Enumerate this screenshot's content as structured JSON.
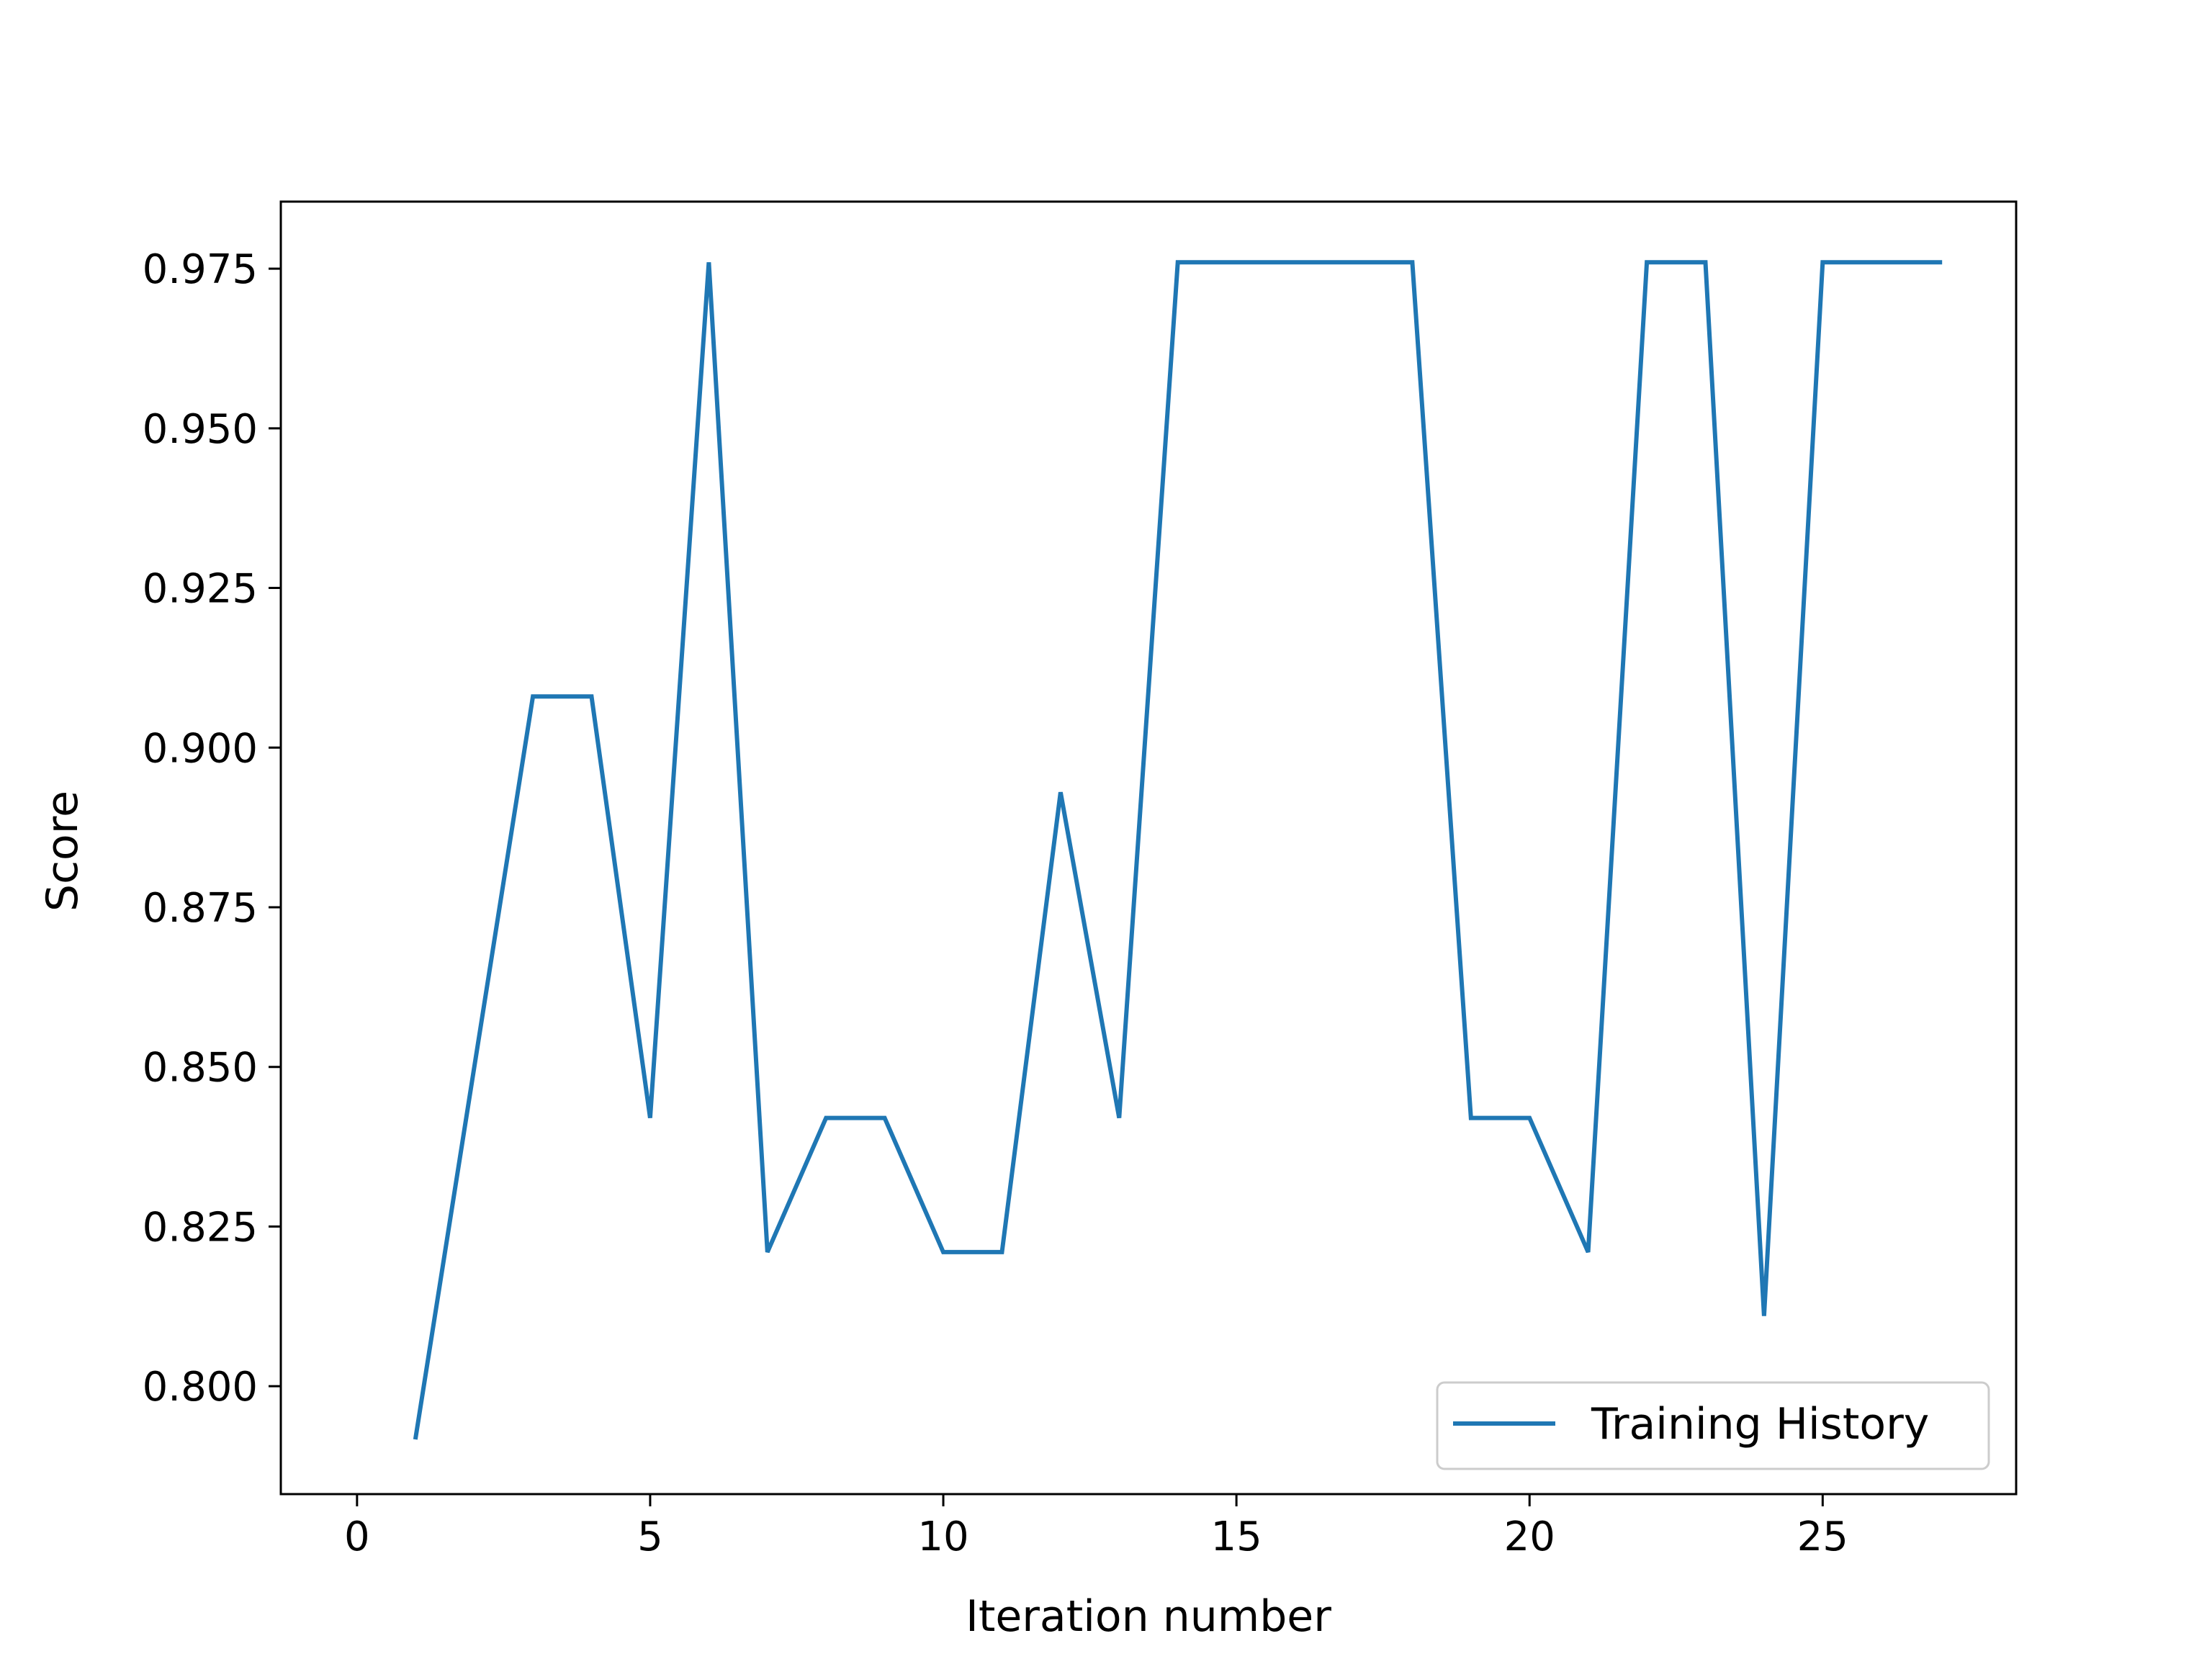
{
  "chart_data": {
    "type": "line",
    "xlabel": "Iteration number",
    "ylabel": "Score",
    "xlim": [
      -1.3,
      28.3
    ],
    "ylim": [
      0.7831,
      0.9855
    ],
    "x_ticks": [
      {
        "value": 0,
        "label": "0"
      },
      {
        "value": 5,
        "label": "5"
      },
      {
        "value": 10,
        "label": "10"
      },
      {
        "value": 15,
        "label": "15"
      },
      {
        "value": 20,
        "label": "20"
      },
      {
        "value": 25,
        "label": "25"
      }
    ],
    "y_ticks": [
      {
        "value": 0.8,
        "label": "0.800"
      },
      {
        "value": 0.825,
        "label": "0.825"
      },
      {
        "value": 0.85,
        "label": "0.850"
      },
      {
        "value": 0.875,
        "label": "0.875"
      },
      {
        "value": 0.9,
        "label": "0.900"
      },
      {
        "value": 0.925,
        "label": "0.925"
      },
      {
        "value": 0.95,
        "label": "0.950"
      },
      {
        "value": 0.975,
        "label": "0.975"
      }
    ],
    "grid": false,
    "legend_position": "lower-right",
    "series": [
      {
        "name": "Training History",
        "color": "#1f77b4",
        "x": [
          1,
          2,
          3,
          4,
          5,
          6,
          7,
          8,
          9,
          10,
          11,
          12,
          13,
          14,
          15,
          16,
          17,
          18,
          19,
          20,
          21,
          22,
          23,
          24,
          25,
          26,
          27
        ],
        "y": [
          0.792,
          0.85,
          0.908,
          0.908,
          0.842,
          0.976,
          0.821,
          0.842,
          0.842,
          0.821,
          0.821,
          0.893,
          0.842,
          0.976,
          0.976,
          0.976,
          0.976,
          0.976,
          0.842,
          0.842,
          0.821,
          0.976,
          0.976,
          0.811,
          0.976,
          0.976,
          0.976
        ]
      }
    ]
  }
}
